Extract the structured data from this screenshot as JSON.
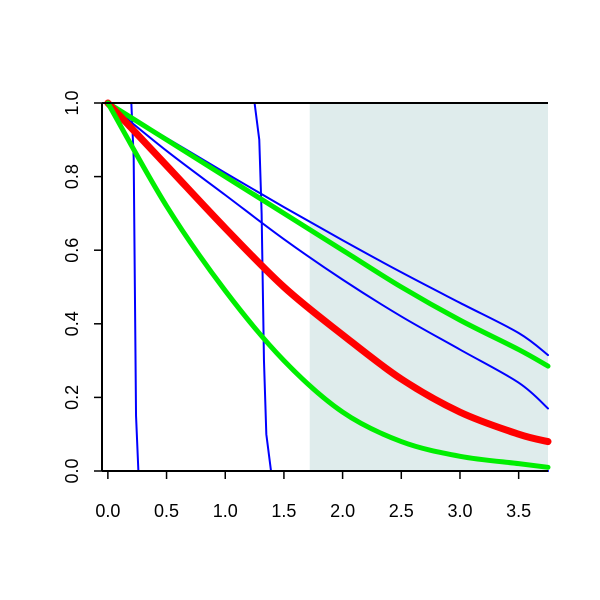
{
  "chart_data": {
    "type": "line",
    "title": "",
    "xlabel": "",
    "ylabel": "",
    "xlim": [
      -0.05,
      3.75
    ],
    "ylim": [
      0,
      1
    ],
    "x_ticks": [
      "0.0",
      "0.5",
      "1.0",
      "1.5",
      "2.0",
      "2.5",
      "3.0",
      "3.5"
    ],
    "y_ticks": [
      "0.0",
      "0.2",
      "0.4",
      "0.6",
      "0.8",
      "1.0"
    ],
    "grid": false,
    "shaded_region": {
      "x_from": 1.72,
      "x_to": 3.75,
      "color": "#dfecec"
    },
    "series": [
      {
        "color": "#0000ff",
        "kind": "step",
        "x": [
          0,
          0.2,
          0.22,
          0.23,
          0.24,
          0.26,
          3.75
        ],
        "values": [
          1.0,
          1.0,
          0.85,
          0.5,
          0.15,
          0.0,
          0.0
        ]
      },
      {
        "color": "#0000ff",
        "kind": "step",
        "x": [
          0,
          1.25,
          1.29,
          1.31,
          1.33,
          1.35,
          1.39,
          3.75
        ],
        "values": [
          1.0,
          1.0,
          0.9,
          0.7,
          0.3,
          0.1,
          0.0,
          0.0
        ]
      },
      {
        "color": "#0000ff",
        "kind": "smooth",
        "x": [
          0,
          0.5,
          1.0,
          1.5,
          2.0,
          2.5,
          3.0,
          3.5,
          3.75
        ],
        "values": [
          1.0,
          0.905,
          0.81,
          0.717,
          0.627,
          0.54,
          0.457,
          0.375,
          0.315
        ]
      },
      {
        "color": "#0000ff",
        "kind": "smooth",
        "x": [
          0,
          0.5,
          1.0,
          1.5,
          2.0,
          2.5,
          3.0,
          3.5,
          3.75
        ],
        "values": [
          1.0,
          0.87,
          0.75,
          0.63,
          0.52,
          0.42,
          0.33,
          0.24,
          0.17
        ]
      },
      {
        "color": "#00ee00",
        "kind": "smooth",
        "x": [
          0,
          0.5,
          1.0,
          1.5,
          2.0,
          2.5,
          3.0,
          3.5,
          3.75
        ],
        "values": [
          1.0,
          0.9,
          0.8,
          0.7,
          0.6,
          0.5,
          0.41,
          0.33,
          0.285
        ]
      },
      {
        "color": "#ff0000",
        "kind": "smooth",
        "x": [
          0,
          0.5,
          1.0,
          1.5,
          2.0,
          2.5,
          3.0,
          3.5,
          3.75
        ],
        "values": [
          1.0,
          0.83,
          0.66,
          0.5,
          0.37,
          0.25,
          0.16,
          0.1,
          0.08
        ]
      },
      {
        "color": "#00ee00",
        "kind": "smooth",
        "x": [
          0,
          0.5,
          1.0,
          1.5,
          2.0,
          2.5,
          3.0,
          3.5,
          3.75
        ],
        "values": [
          1.0,
          0.72,
          0.49,
          0.3,
          0.16,
          0.08,
          0.04,
          0.02,
          0.01
        ]
      }
    ]
  }
}
